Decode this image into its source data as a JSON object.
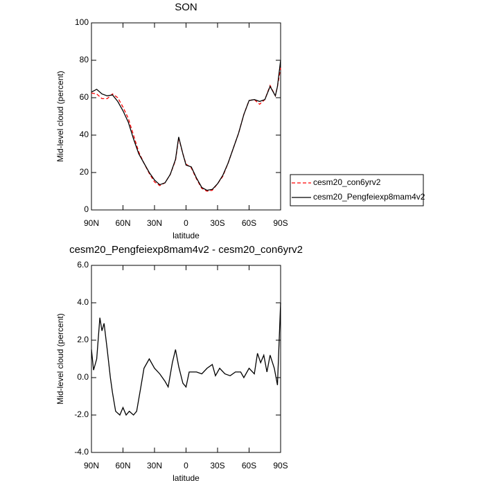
{
  "chart_data": [
    {
      "type": "line",
      "title": "SON",
      "xlabel": "latitude",
      "ylabel": "Mid-level cloud (percent)",
      "x": [
        90,
        85,
        80,
        75,
        70,
        65,
        60,
        55,
        50,
        45,
        40,
        35,
        30,
        25,
        20,
        15,
        10,
        7,
        3,
        0,
        -5,
        -10,
        -15,
        -20,
        -25,
        -30,
        -35,
        -40,
        -45,
        -50,
        -55,
        -60,
        -65,
        -70,
        -75,
        -80,
        -85,
        -87,
        -90
      ],
      "series": [
        {
          "name": "cesm20_con6yrv2",
          "color": "#ff0000",
          "dashed": true,
          "values": [
            62.5,
            62,
            59.5,
            59.5,
            62,
            60,
            55,
            49,
            40,
            31,
            25,
            19.5,
            15,
            13,
            14.5,
            19,
            26.5,
            38.5,
            30,
            24.5,
            22.5,
            16.5,
            11.5,
            10,
            10.5,
            14,
            18,
            25,
            33,
            41,
            51,
            58.5,
            59,
            56.5,
            59,
            66.5,
            61,
            66,
            76
          ]
        },
        {
          "name": "cesm20_Pengfeiexp8mam4v2",
          "color": "#000000",
          "dashed": false,
          "values": [
            63,
            64.5,
            62,
            61,
            61.5,
            58,
            53,
            47,
            38,
            30,
            25,
            20,
            16,
            13.5,
            14.5,
            19,
            27,
            39,
            30,
            24,
            23,
            17,
            12,
            10.5,
            11,
            14,
            18.5,
            25,
            33,
            41,
            51,
            58.5,
            59,
            58,
            59,
            66,
            61,
            66,
            80
          ]
        }
      ],
      "xlim": [
        90,
        -90
      ],
      "xticks": [
        {
          "value": 90,
          "label": "90N"
        },
        {
          "value": 60,
          "label": "60N"
        },
        {
          "value": 30,
          "label": "30N"
        },
        0,
        {
          "value": -30,
          "label": "30S"
        },
        {
          "value": -60,
          "label": "60S"
        },
        {
          "value": -90,
          "label": "90S"
        }
      ],
      "ylim": [
        0,
        100
      ],
      "yticks": [
        0,
        20,
        40,
        60,
        80,
        100
      ],
      "grid": false,
      "legend": "right"
    },
    {
      "type": "line",
      "title": "cesm20_Pengfeiexp8mam4v2 - cesm20_con6yrv2",
      "xlabel": "latitude",
      "ylabel": "Mid-level cloud (percent)",
      "x": [
        90,
        88,
        85,
        82,
        80,
        78,
        75,
        72,
        70,
        67,
        63,
        60,
        57,
        54,
        50,
        47,
        43,
        40,
        35,
        30,
        25,
        20,
        17,
        13,
        10,
        7,
        3,
        0,
        -3,
        -10,
        -15,
        -20,
        -25,
        -28,
        -32,
        -37,
        -42,
        -47,
        -52,
        -55,
        -60,
        -65,
        -68,
        -71,
        -74,
        -77,
        -80,
        -84,
        -87,
        -90
      ],
      "series": [
        {
          "color": "#000000",
          "dashed": false,
          "values": [
            1.5,
            0.4,
            1.0,
            3.2,
            2.5,
            2.9,
            1.5,
            0,
            -0.8,
            -1.8,
            -2.0,
            -1.6,
            -2.0,
            -1.8,
            -2.0,
            -1.8,
            -0.5,
            0.5,
            1.0,
            0.5,
            0.2,
            -0.2,
            -0.5,
            0.8,
            1.5,
            0.6,
            -0.3,
            -0.5,
            0.3,
            0.3,
            0.2,
            0.5,
            0.7,
            0.1,
            0.5,
            0.2,
            0.1,
            0.3,
            0.3,
            0,
            0.5,
            0.2,
            1.3,
            0.8,
            1.2,
            0.3,
            1.2,
            0.5,
            -0.4,
            4.0
          ]
        }
      ],
      "xlim": [
        90,
        -90
      ],
      "xticks": [
        {
          "value": 90,
          "label": "90N"
        },
        {
          "value": 60,
          "label": "60N"
        },
        {
          "value": 30,
          "label": "30N"
        },
        0,
        {
          "value": -30,
          "label": "30S"
        },
        {
          "value": -60,
          "label": "60S"
        },
        {
          "value": -90,
          "label": "90S"
        }
      ],
      "ylim": [
        -4,
        6
      ],
      "yticks": [
        {
          "value": -4,
          "label": "-4.0"
        },
        {
          "value": -2,
          "label": "-2.0"
        },
        {
          "value": 0,
          "label": "0.0"
        },
        {
          "value": 2,
          "label": "2.0"
        },
        {
          "value": 4,
          "label": "4.0"
        },
        {
          "value": 6,
          "label": "6.0"
        }
      ],
      "grid": false
    }
  ]
}
